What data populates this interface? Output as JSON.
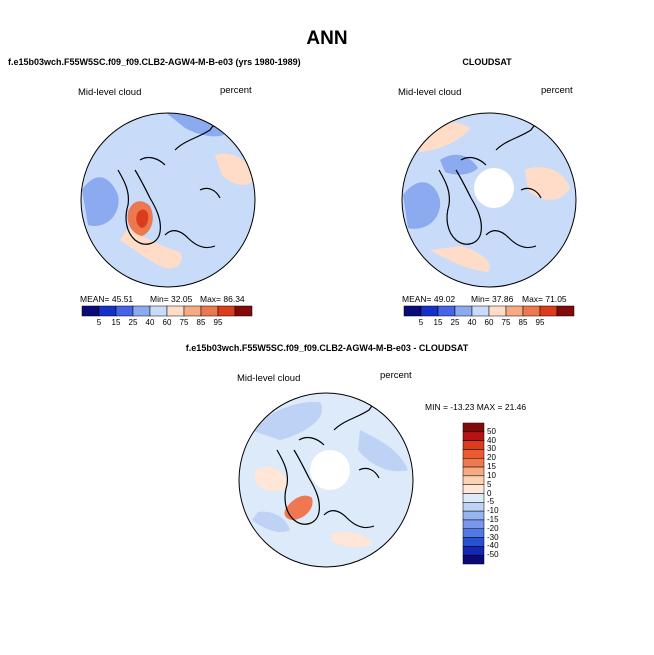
{
  "page_title": "ANN",
  "chart_data": [
    {
      "type": "heatmap",
      "projection": "north-polar-stereographic",
      "title": "f.e15b03wch.F55W5SC.f09_f09.CLB2-AGW4-M-B-e03 (yrs 1980-1989)",
      "variable": "Mid-level cloud",
      "units": "percent",
      "stats": {
        "mean": "MEAN=   45.51",
        "min": "Min=   32.05",
        "max": "Max=   86.34"
      },
      "colorbar": {
        "orientation": "horizontal",
        "ticks": [
          "5",
          "15",
          "25",
          "40",
          "60",
          "75",
          "85",
          "95"
        ],
        "colors": [
          "#0a0a78",
          "#1432c8",
          "#4664e6",
          "#8caaf0",
          "#c8dcfa",
          "#ffdcc8",
          "#f5aa82",
          "#ec7850",
          "#dc3c1e",
          "#820a0a"
        ]
      },
      "regions": [
        {
          "name": "ocean-field",
          "color": "#c8dcfa"
        },
        {
          "name": "band-blue",
          "color": "#8caaf0"
        },
        {
          "name": "atlantic-warm",
          "color": "#ffdcc8"
        },
        {
          "name": "siberia-warm",
          "color": "#ffdcc8"
        },
        {
          "name": "greenland-high",
          "color": "#ec7850"
        },
        {
          "name": "greenland-peak",
          "color": "#dc3c1e"
        }
      ]
    },
    {
      "type": "heatmap",
      "projection": "north-polar-stereographic",
      "title": "CLOUDSAT",
      "variable": "Mid-level cloud",
      "units": "percent",
      "stats": {
        "mean": "MEAN=   49.02",
        "min": "Min=   37.86",
        "max": "Max=   71.05"
      },
      "colorbar": {
        "orientation": "horizontal",
        "ticks": [
          "5",
          "15",
          "25",
          "40",
          "60",
          "75",
          "85",
          "95"
        ],
        "colors": [
          "#0a0a78",
          "#1432c8",
          "#4664e6",
          "#8caaf0",
          "#c8dcfa",
          "#ffdcc8",
          "#f5aa82",
          "#ec7850",
          "#dc3c1e",
          "#820a0a"
        ]
      },
      "regions": [
        {
          "name": "ocean-field",
          "color": "#c8dcfa"
        },
        {
          "name": "band-blue",
          "color": "#8caaf0"
        },
        {
          "name": "atlantic-warm",
          "color": "#ffdcc8"
        },
        {
          "name": "siberia-warm",
          "color": "#ffdcc8"
        },
        {
          "name": "pole-missing",
          "color": "#ffffff"
        }
      ]
    },
    {
      "type": "heatmap",
      "projection": "north-polar-stereographic",
      "title": "f.e15b03wch.F55W5SC.f09_f09.CLB2-AGW4-M-B-e03 - CLOUDSAT",
      "variable": "Mid-level cloud",
      "units": "percent",
      "stats": {
        "min_max": "MIN = -13.23 MAX =  21.46"
      },
      "colorbar": {
        "orientation": "vertical",
        "ticks": [
          "50",
          "40",
          "30",
          "20",
          "15",
          "10",
          "5",
          "0",
          "-5",
          "-10",
          "-15",
          "-20",
          "-30",
          "-40",
          "-50"
        ],
        "colors": [
          "#820a0a",
          "#b41414",
          "#dc3c1e",
          "#ec5a32",
          "#f07850",
          "#f5aa82",
          "#fad2b4",
          "#ffe6d6",
          "#dceafa",
          "#bed2f5",
          "#96b4f0",
          "#7896eb",
          "#5078e6",
          "#2850d2",
          "#1428b4",
          "#0a0a78"
        ]
      },
      "regions": [
        {
          "name": "ocean-field",
          "color": "#dceafa"
        },
        {
          "name": "band-blue",
          "color": "#bed2f5"
        },
        {
          "name": "atlantic-warm",
          "color": "#ffe6d6"
        },
        {
          "name": "greenland-high",
          "color": "#f07850"
        },
        {
          "name": "pole-missing",
          "color": "#ffffff"
        }
      ]
    }
  ]
}
